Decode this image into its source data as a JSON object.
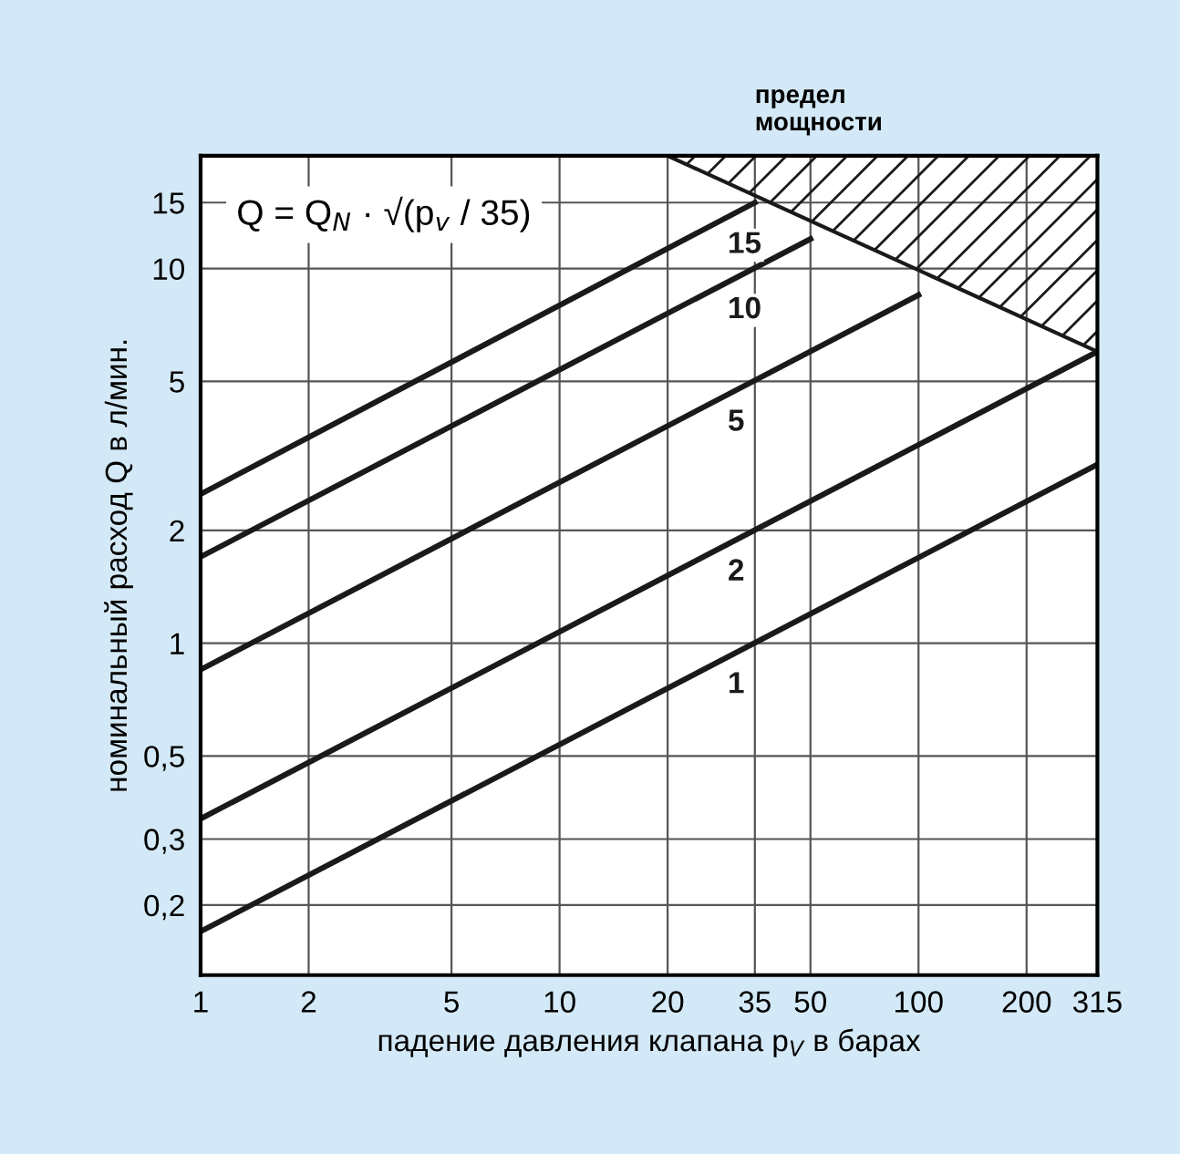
{
  "chart_data": {
    "type": "line",
    "xlabel": "падение давления клапана p$_{V}$ в барах",
    "ylabel": "номинальный расход Q в л/мин.",
    "log": "xy",
    "grid": true,
    "marker": "none",
    "line_style": "solid",
    "xlim": [
      1,
      315
    ],
    "ylim": [
      0.13,
      20
    ],
    "xticks": [
      1,
      2,
      5,
      10,
      20,
      35,
      50,
      100,
      200,
      315
    ],
    "yticks": [
      {
        "value": 0.2,
        "label": "0,2"
      },
      {
        "value": 0.3,
        "label": "0,3"
      },
      {
        "value": 0.5,
        "label": "0,5"
      },
      1,
      2,
      5,
      10,
      15
    ],
    "series": [
      {
        "name": "15",
        "color": "#1a1a1a",
        "x": [
          1,
          35
        ],
        "values": [
          2.5,
          15
        ]
      },
      {
        "name": "10",
        "color": "#1a1a1a",
        "x": [
          1,
          50
        ],
        "values": [
          1.7,
          12
        ]
      },
      {
        "name": "5",
        "color": "#1a1a1a",
        "x": [
          1,
          100
        ],
        "values": [
          0.85,
          8.5
        ]
      },
      {
        "name": "2",
        "color": "#1a1a1a",
        "x": [
          1,
          315
        ],
        "values": [
          0.34,
          6
        ]
      },
      {
        "name": "1",
        "color": "#1a1a1a",
        "x": [
          1,
          315
        ],
        "values": [
          0.17,
          3
        ]
      },
      {
        "type": "area",
        "color": "#1a1a1a",
        "x": [
          20,
          315
        ],
        "values": [
          20,
          6
        ]
      }
    ],
    "annotations": [
      {
        "text": "предел\nмощности",
        "x": 35,
        "y": 20
      },
      "Q = Q$_{N}$ · √(p$_{v}$ / 35)"
    ]
  }
}
